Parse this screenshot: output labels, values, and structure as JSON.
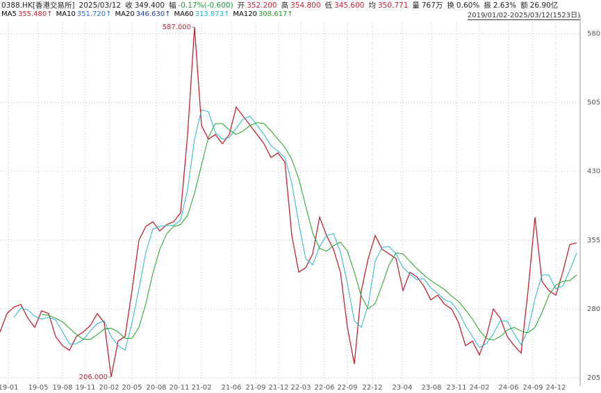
{
  "header": {
    "symbol": "0388.HK[香港交易所]",
    "date": "2025/03/12",
    "fields": [
      {
        "label": "收",
        "value": "349.400",
        "color": "#222"
      },
      {
        "label": "幅",
        "value": "-0.17%(-0.600)",
        "color": "#1a9a3a"
      },
      {
        "label": "开",
        "value": "352.200",
        "color": "#d0202f"
      },
      {
        "label": "高",
        "value": "354.800",
        "color": "#d0202f"
      },
      {
        "label": "低",
        "value": "345.600",
        "color": "#d0202f"
      },
      {
        "label": "均",
        "value": "350.771",
        "color": "#d0202f"
      },
      {
        "label": "量",
        "value": "767万",
        "color": "#222"
      },
      {
        "label": "换",
        "value": "0.60%",
        "color": "#222"
      },
      {
        "label": "振",
        "value": "2.63%",
        "color": "#222"
      },
      {
        "label": "额",
        "value": "26.90亿",
        "color": "#222"
      }
    ]
  },
  "ma_legend": [
    {
      "name": "MA5",
      "value": "355.480↑",
      "color": "#d0202f"
    },
    {
      "name": "MA10",
      "value": "351.720↑",
      "color": "#2a6bd8"
    },
    {
      "name": "MA20",
      "value": "346.630↑",
      "color": "#1a3ab0"
    },
    {
      "name": "MA60",
      "value": "313.873↑",
      "color": "#22b4d6"
    },
    {
      "name": "MA120",
      "value": "308.617↑",
      "color": "#1aa31a"
    }
  ],
  "range_label": "2019/01/02-2025/03/12(1523日)",
  "chart_data": {
    "type": "line",
    "x": [
      0,
      1,
      2,
      3,
      4,
      5,
      6,
      7,
      8,
      9,
      10,
      11,
      12,
      13,
      14,
      15,
      16,
      17,
      18,
      19,
      20,
      21,
      22,
      23,
      24,
      25,
      26,
      27,
      28,
      29,
      30,
      31,
      32,
      33,
      34,
      35,
      36,
      37,
      38,
      39,
      40,
      41,
      42,
      43,
      44,
      45,
      46,
      47,
      48,
      49,
      50,
      51,
      52,
      53,
      54,
      55,
      56,
      57,
      58,
      59,
      60,
      61,
      62,
      63,
      64,
      65,
      66,
      67,
      68,
      69,
      70,
      71,
      72,
      73,
      74,
      75,
      76,
      77,
      78,
      79,
      80,
      81,
      82,
      83
    ],
    "series": [
      {
        "color": "#c8202f",
        "values": [
          255,
          275,
          282,
          285,
          270,
          260,
          278,
          275,
          250,
          240,
          235,
          250,
          255,
          262,
          275,
          265,
          206,
          245,
          250,
          300,
          355,
          370,
          375,
          365,
          372,
          375,
          385,
          470,
          587,
          480,
          465,
          470,
          460,
          470,
          500,
          490,
          480,
          470,
          460,
          445,
          450,
          440,
          360,
          320,
          325,
          340,
          380,
          360,
          345,
          320,
          260,
          220,
          300,
          335,
          360,
          345,
          340,
          335,
          300,
          320,
          315,
          305,
          290,
          295,
          285,
          280,
          265,
          240,
          245,
          230,
          250,
          280,
          270,
          250,
          240,
          232,
          300,
          380,
          310,
          300,
          295,
          320,
          350,
          352
        ]
      },
      {
        "color": "#22b4d6",
        "values": [
          null,
          null,
          271,
          281,
          279,
          272,
          269,
          271,
          268,
          255,
          242,
          242,
          247,
          256,
          264,
          267,
          250,
          240,
          235,
          265,
          302,
          342,
          367,
          370,
          371,
          371,
          377,
          410,
          465,
          497,
          495,
          472,
          465,
          467,
          477,
          487,
          490,
          480,
          470,
          458,
          452,
          445,
          417,
          373,
          335,
          328,
          348,
          360,
          362,
          342,
          308,
          267,
          260,
          285,
          332,
          347,
          348,
          340,
          325,
          318,
          312,
          313,
          303,
          297,
          290,
          287,
          277,
          262,
          250,
          238,
          242,
          253,
          267,
          267,
          253,
          241,
          257,
          291,
          317,
          317,
          302,
          305,
          322,
          341
        ]
      },
      {
        "color": "#1aa31a",
        "values": [
          null,
          null,
          null,
          null,
          null,
          null,
          274,
          273,
          270,
          266,
          259,
          252,
          247,
          247,
          252,
          258,
          259,
          255,
          248,
          248,
          260,
          286,
          319,
          345,
          362,
          370,
          372,
          382,
          406,
          437,
          467,
          482,
          482,
          475,
          470,
          474,
          480,
          483,
          482,
          474,
          465,
          456,
          443,
          422,
          392,
          363,
          346,
          343,
          349,
          353,
          343,
          320,
          294,
          280,
          286,
          306,
          328,
          341,
          340,
          332,
          324,
          317,
          311,
          306,
          301,
          294,
          288,
          279,
          269,
          257,
          248,
          246,
          250,
          257,
          260,
          256,
          254,
          260,
          276,
          295,
          306,
          310,
          311,
          317
        ]
      }
    ],
    "xlim": [
      0,
      83.5
    ],
    "xticks": [
      {
        "value": 1.2,
        "label": "19-01"
      },
      {
        "value": 5.5,
        "label": "19-05"
      },
      {
        "value": 9,
        "label": "19-08"
      },
      {
        "value": 12.3,
        "label": "19-11"
      },
      {
        "value": 15.7,
        "label": "20-02"
      },
      {
        "value": 19,
        "label": "20-05"
      },
      {
        "value": 22.5,
        "label": "20-08"
      },
      {
        "value": 25.8,
        "label": "20-11"
      },
      {
        "value": 29,
        "label": "21-02"
      },
      {
        "value": 33.3,
        "label": "21-06"
      },
      {
        "value": 36.8,
        "label": "21-09"
      },
      {
        "value": 40.1,
        "label": "21-12"
      },
      {
        "value": 43.3,
        "label": "22-03"
      },
      {
        "value": 46.7,
        "label": "22-06"
      },
      {
        "value": 50,
        "label": "22-09"
      },
      {
        "value": 53.6,
        "label": "22-12"
      },
      {
        "value": 57.9,
        "label": "23-04"
      },
      {
        "value": 62.1,
        "label": "23-08"
      },
      {
        "value": 65.7,
        "label": "23-11"
      },
      {
        "value": 69,
        "label": "24-02"
      },
      {
        "value": 73.2,
        "label": "24-06"
      },
      {
        "value": 76.7,
        "label": "24-09"
      },
      {
        "value": 80,
        "label": "24-12"
      }
    ],
    "ylim": [
      196,
      600
    ],
    "yticks": [
      205,
      280,
      355,
      430,
      505,
      580
    ],
    "grid": true,
    "annotations": [
      {
        "text": "587.000",
        "x": 28,
        "y": 587
      },
      {
        "text": "206.000",
        "x": 16,
        "y": 206
      }
    ]
  }
}
